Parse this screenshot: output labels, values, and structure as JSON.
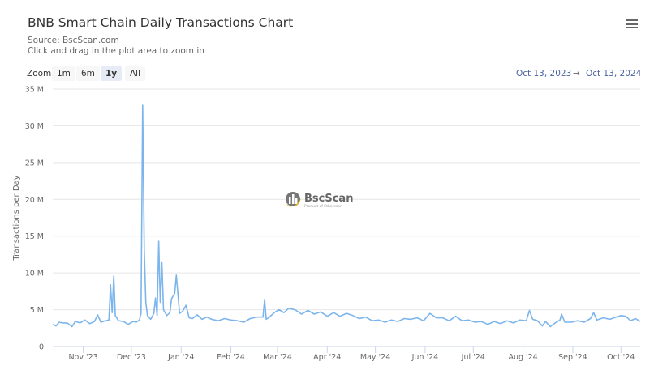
{
  "header": {
    "title": "BNB Smart Chain Daily Transactions Chart",
    "source": "Source: BscScan.com",
    "hint": "Click and drag in the plot area to zoom in",
    "menu_icon": "hamburger-icon"
  },
  "zoom": {
    "label": "Zoom",
    "buttons": [
      "1m",
      "6m",
      "1y",
      "All"
    ],
    "selected": "1y"
  },
  "range": {
    "from": "Oct 13, 2023",
    "arrow": "→",
    "to": "Oct 13, 2024"
  },
  "watermark": {
    "name": "BscScan",
    "tagline": "Product of Etherscan"
  },
  "colors": {
    "line": "#7cb5ec",
    "range_text": "#4a63a0"
  },
  "chart_data": {
    "type": "line",
    "title": "BNB Smart Chain Daily Transactions Chart",
    "ylabel": "Transactions per Day",
    "ylim": [
      0,
      35000000
    ],
    "yticks": [
      0,
      5000000,
      10000000,
      15000000,
      20000000,
      25000000,
      30000000,
      35000000
    ],
    "ytick_labels": [
      "0",
      "5 M",
      "10 M",
      "15 M",
      "20 M",
      "25 M",
      "30 M",
      "35 M"
    ],
    "xlim": [
      "2023-10-13",
      "2024-10-13"
    ],
    "xtick_dates": [
      "2023-11-01",
      "2023-12-01",
      "2024-01-01",
      "2024-02-01",
      "2024-03-01",
      "2024-04-01",
      "2024-05-01",
      "2024-06-01",
      "2024-07-01",
      "2024-08-01",
      "2024-09-01",
      "2024-10-01"
    ],
    "xtick_labels": [
      "Nov '23",
      "Dec '23",
      "Jan '24",
      "Feb '24",
      "Mar '24",
      "Apr '24",
      "May '24",
      "Jun '24",
      "Jul '24",
      "Aug '24",
      "Sep '24",
      "Oct '24"
    ],
    "grid": true,
    "legend": false,
    "unit": "millions",
    "series": [
      {
        "x": [
          "2023-10-13",
          "2023-10-15",
          "2023-10-17",
          "2023-10-19",
          "2023-10-22",
          "2023-10-25",
          "2023-10-27",
          "2023-10-30",
          "2023-11-02",
          "2023-11-05",
          "2023-11-08",
          "2023-11-10",
          "2023-11-12",
          "2023-11-15",
          "2023-11-17",
          "2023-11-18",
          "2023-11-19",
          "2023-11-20",
          "2023-11-21",
          "2023-11-23",
          "2023-11-26",
          "2023-11-29",
          "2023-12-02",
          "2023-12-04",
          "2023-12-06",
          "2023-12-07",
          "2023-12-08",
          "2023-12-09",
          "2023-12-10",
          "2023-12-11",
          "2023-12-13",
          "2023-12-15",
          "2023-12-16",
          "2023-12-17",
          "2023-12-18",
          "2023-12-19",
          "2023-12-20",
          "2023-12-21",
          "2023-12-23",
          "2023-12-25",
          "2023-12-26",
          "2023-12-28",
          "2023-12-29",
          "2023-12-31",
          "2024-01-02",
          "2024-01-04",
          "2024-01-06",
          "2024-01-08",
          "2024-01-11",
          "2024-01-14",
          "2024-01-17",
          "2024-01-20",
          "2024-01-24",
          "2024-01-28",
          "2024-02-01",
          "2024-02-05",
          "2024-02-09",
          "2024-02-13",
          "2024-02-17",
          "2024-02-21",
          "2024-02-22",
          "2024-02-23",
          "2024-02-25",
          "2024-02-28",
          "2024-03-02",
          "2024-03-05",
          "2024-03-08",
          "2024-03-12",
          "2024-03-16",
          "2024-03-20",
          "2024-03-24",
          "2024-03-28",
          "2024-04-01",
          "2024-04-05",
          "2024-04-09",
          "2024-04-13",
          "2024-04-17",
          "2024-04-21",
          "2024-04-25",
          "2024-04-29",
          "2024-05-03",
          "2024-05-07",
          "2024-05-11",
          "2024-05-15",
          "2024-05-19",
          "2024-05-23",
          "2024-05-27",
          "2024-05-31",
          "2024-06-04",
          "2024-06-08",
          "2024-06-12",
          "2024-06-16",
          "2024-06-20",
          "2024-06-24",
          "2024-06-28",
          "2024-07-02",
          "2024-07-06",
          "2024-07-10",
          "2024-07-14",
          "2024-07-18",
          "2024-07-22",
          "2024-07-26",
          "2024-07-30",
          "2024-08-03",
          "2024-08-05",
          "2024-08-07",
          "2024-08-10",
          "2024-08-13",
          "2024-08-15",
          "2024-08-18",
          "2024-08-21",
          "2024-08-24",
          "2024-08-25",
          "2024-08-27",
          "2024-08-31",
          "2024-09-04",
          "2024-09-08",
          "2024-09-12",
          "2024-09-14",
          "2024-09-16",
          "2024-09-20",
          "2024-09-24",
          "2024-09-28",
          "2024-10-01",
          "2024-10-04",
          "2024-10-07",
          "2024-10-10",
          "2024-10-13"
        ],
        "y": [
          3.0,
          2.8,
          3.3,
          3.2,
          3.2,
          2.7,
          3.4,
          3.2,
          3.6,
          3.1,
          3.4,
          4.3,
          3.3,
          3.5,
          3.6,
          8.4,
          4.6,
          9.6,
          4.2,
          3.5,
          3.4,
          3.0,
          3.4,
          3.3,
          3.6,
          4.5,
          32.8,
          13.0,
          6.0,
          4.2,
          3.7,
          4.5,
          6.6,
          4.2,
          14.3,
          6.0,
          11.4,
          5.0,
          4.2,
          4.6,
          6.5,
          7.2,
          9.7,
          4.5,
          4.8,
          5.6,
          3.9,
          3.8,
          4.3,
          3.7,
          4.0,
          3.7,
          3.5,
          3.8,
          3.6,
          3.5,
          3.3,
          3.8,
          4.0,
          4.0,
          6.4,
          3.7,
          4.0,
          4.6,
          5.0,
          4.6,
          5.2,
          5.0,
          4.4,
          4.9,
          4.4,
          4.7,
          4.1,
          4.6,
          4.1,
          4.5,
          4.2,
          3.8,
          4.0,
          3.5,
          3.6,
          3.3,
          3.6,
          3.4,
          3.8,
          3.7,
          3.9,
          3.5,
          4.5,
          3.9,
          3.9,
          3.5,
          4.1,
          3.5,
          3.6,
          3.3,
          3.4,
          3.0,
          3.4,
          3.1,
          3.5,
          3.2,
          3.6,
          3.5,
          4.9,
          3.7,
          3.5,
          2.8,
          3.4,
          2.7,
          3.2,
          3.6,
          4.4,
          3.3,
          3.3,
          3.5,
          3.3,
          3.8,
          4.6,
          3.6,
          3.9,
          3.7,
          4.0,
          4.2,
          4.1,
          3.5,
          3.8,
          3.4
        ]
      }
    ]
  }
}
